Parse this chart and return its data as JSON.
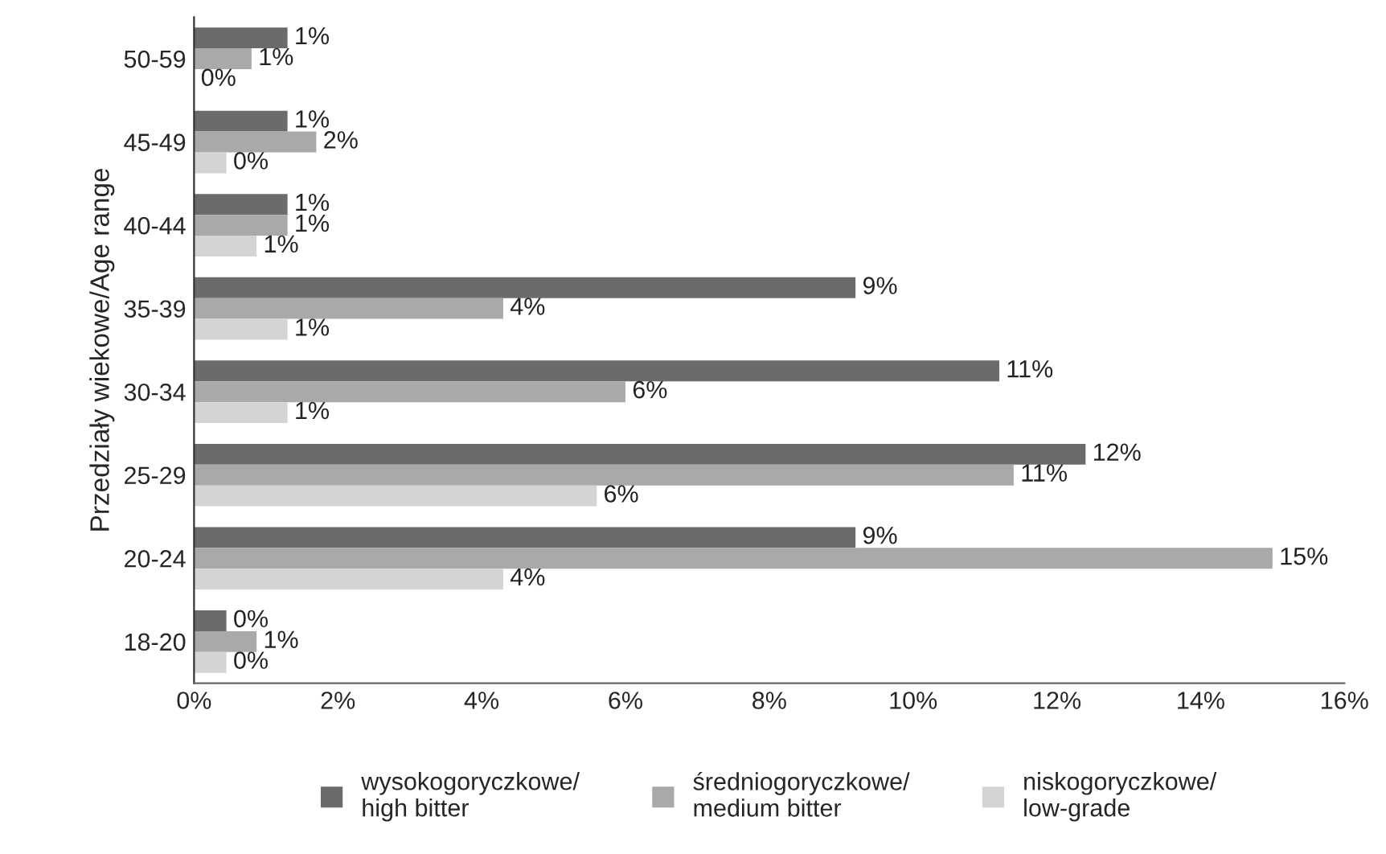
{
  "chart_data": {
    "type": "bar",
    "orientation": "horizontal",
    "ylabel": "Przedziały wiekowe/Age range",
    "categories": [
      "50-59",
      "45-49",
      "40-44",
      "35-39",
      "30-34",
      "25-29",
      "20-24",
      "18-20"
    ],
    "series": [
      {
        "name": "wysokogoryczkowe/\nhigh bitter",
        "color": "#6b6b6d",
        "values": [
          1.3,
          1.3,
          1.3,
          9.2,
          11.2,
          12.4,
          9.2,
          0.45
        ],
        "value_labels": [
          "1%",
          "1%",
          "1%",
          "9%",
          "11%",
          "12%",
          "9%",
          "0%"
        ]
      },
      {
        "name": "średniogoryczkowe/\nmedium bitter",
        "color": "#a9a9ab",
        "values": [
          0.8,
          1.7,
          1.3,
          4.3,
          6.0,
          11.4,
          15.0,
          0.87
        ],
        "value_labels": [
          "1%",
          "2%",
          "1%",
          "4%",
          "6%",
          "11%",
          "15%",
          "1%"
        ]
      },
      {
        "name": "niskogoryczkowe/\nlow-grade",
        "color": "#d4d4d6",
        "values": [
          0,
          0.45,
          0.87,
          1.3,
          1.3,
          5.6,
          4.3,
          0.45
        ],
        "value_labels": [
          "0%",
          "0%",
          "1%",
          "1%",
          "1%",
          "6%",
          "4%",
          "0%"
        ]
      }
    ],
    "xlim": [
      0,
      16
    ],
    "xticks": [
      {
        "value": 0,
        "label": "0%"
      },
      {
        "value": 2,
        "label": "2%"
      },
      {
        "value": 4,
        "label": "4%"
      },
      {
        "value": 6,
        "label": "6%"
      },
      {
        "value": 8,
        "label": "8%"
      },
      {
        "value": 10,
        "label": "10%"
      },
      {
        "value": 12,
        "label": "12%"
      },
      {
        "value": 14,
        "label": "14%"
      },
      {
        "value": 16,
        "label": "16%"
      }
    ],
    "grid": false,
    "legend": "bottom"
  }
}
